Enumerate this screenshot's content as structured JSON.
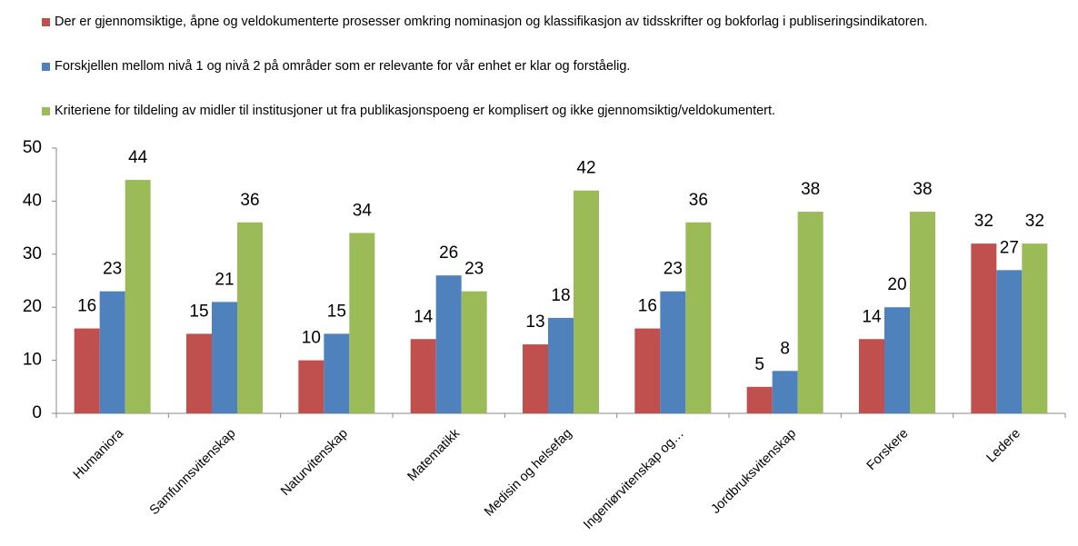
{
  "chart_data": {
    "type": "bar",
    "categories": [
      "Humaniora",
      "Samfunnsvitenskap",
      "Naturvitenskap",
      "Matematikk",
      "Medisin og helsefag",
      "Ingeniørvitenskap og…",
      "Jordbruksvitenskap",
      "Forskere",
      "Ledere"
    ],
    "series": [
      {
        "name": "Der er gjennomsiktige, åpne og veldokumenterte prosesser omkring nominasjon og klassifikasjon av tidsskrifter og bokforlag i publiseringsindikatoren.",
        "color": "#c0504d",
        "values": [
          16,
          15,
          10,
          14,
          13,
          16,
          5,
          14,
          32
        ]
      },
      {
        "name": "Forskjellen mellom nivå 1 og nivå 2 på områder som er relevante for vår enhet er klar og forståelig.",
        "color": "#4f81bd",
        "values": [
          23,
          21,
          15,
          26,
          18,
          23,
          8,
          20,
          27
        ]
      },
      {
        "name": "Kriteriene for tildeling av midler til institusjoner ut fra publikasjonspoeng er komplisert og ikke gjennomsiktig/veldokumentert.",
        "color": "#9bbb59",
        "values": [
          44,
          36,
          34,
          23,
          42,
          36,
          38,
          38,
          32
        ]
      }
    ],
    "ylim": [
      0,
      50
    ],
    "yticks": [
      0,
      10,
      20,
      30,
      40,
      50
    ],
    "grid": false,
    "legend": "top"
  }
}
